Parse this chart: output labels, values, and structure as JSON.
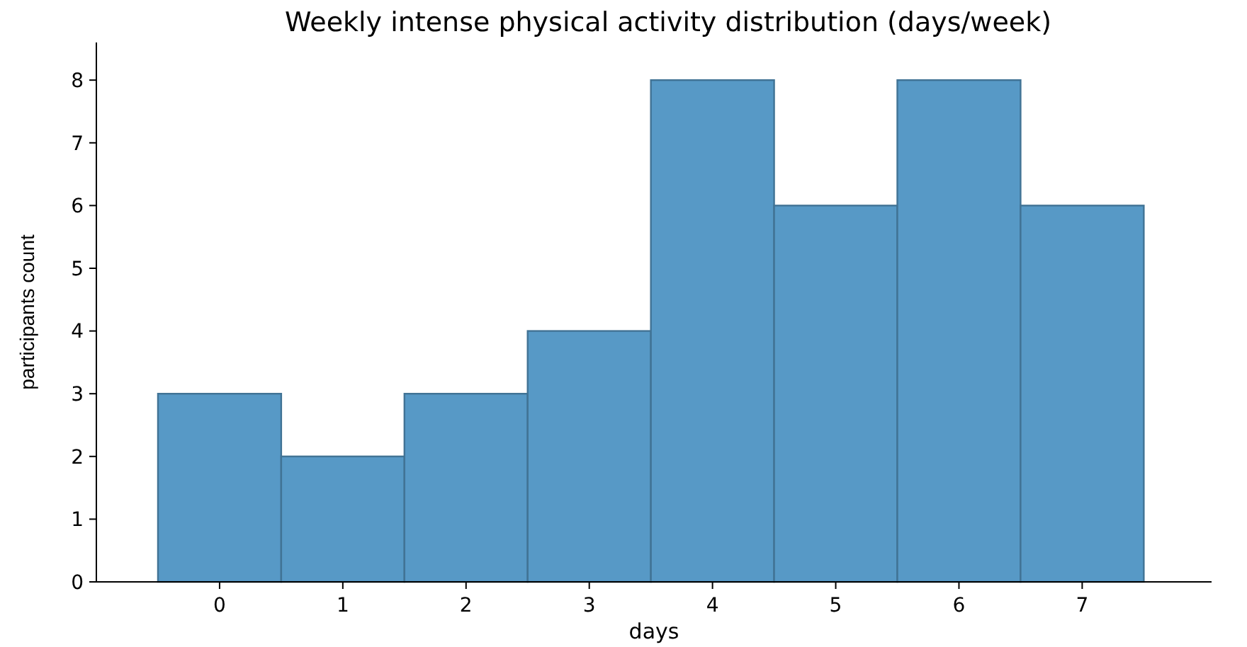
{
  "chart_data": {
    "type": "histogram",
    "title": "Weekly intense physical activity distribution (days/week)",
    "xlabel": "days",
    "ylabel": "participants count",
    "bins": [
      -0.5,
      0.5,
      1.5,
      2.5,
      3.5,
      4.5,
      5.5,
      6.5,
      7.5
    ],
    "values": [
      3,
      2,
      3,
      4,
      8,
      6,
      8,
      6
    ],
    "color": "#5799c6",
    "xlim": [
      -1,
      8.05
    ],
    "xticks": [
      0,
      1,
      2,
      3,
      4,
      5,
      6,
      7
    ],
    "ylim": [
      0,
      8.6
    ],
    "yticks": [
      0,
      1,
      2,
      3,
      4,
      5,
      6,
      7,
      8
    ],
    "grid": false
  }
}
